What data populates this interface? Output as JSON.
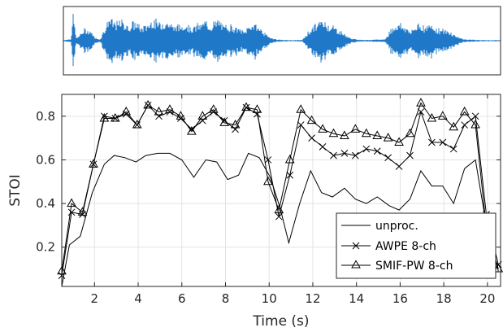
{
  "chart_data": [
    {
      "type": "line",
      "title": "",
      "xlabel": "",
      "ylabel": "",
      "grid": false,
      "xlim": [
        0.5,
        20.6
      ],
      "ylim": [
        -1,
        1
      ],
      "series": [
        {
          "envelope": [
            [
              0.5,
              0.02
            ],
            [
              0.85,
              0.06
            ],
            [
              0.95,
              0.9
            ],
            [
              1.1,
              0.08
            ],
            [
              1.3,
              0.25
            ],
            [
              1.5,
              0.4
            ],
            [
              1.75,
              0.35
            ],
            [
              1.95,
              0.1
            ],
            [
              2.2,
              0.05
            ],
            [
              2.4,
              0.45
            ],
            [
              2.6,
              0.75
            ],
            [
              2.9,
              0.6
            ],
            [
              3.2,
              0.7
            ],
            [
              3.5,
              0.5
            ],
            [
              3.8,
              0.65
            ],
            [
              4.1,
              0.45
            ],
            [
              4.35,
              0.55
            ],
            [
              4.6,
              0.75
            ],
            [
              4.9,
              0.6
            ],
            [
              5.2,
              0.7
            ],
            [
              5.5,
              0.55
            ],
            [
              5.8,
              0.5
            ],
            [
              6.1,
              0.6
            ],
            [
              6.4,
              0.45
            ],
            [
              6.7,
              0.55
            ],
            [
              7.0,
              0.65
            ],
            [
              7.3,
              0.55
            ],
            [
              7.6,
              0.7
            ],
            [
              7.9,
              0.5
            ],
            [
              8.2,
              0.55
            ],
            [
              8.5,
              0.45
            ],
            [
              8.8,
              0.3
            ],
            [
              9.0,
              0.5
            ],
            [
              9.3,
              0.6
            ],
            [
              9.6,
              0.4
            ],
            [
              9.9,
              0.15
            ],
            [
              10.3,
              0.04
            ],
            [
              10.8,
              0.02
            ],
            [
              11.2,
              0.02
            ],
            [
              11.5,
              0.03
            ],
            [
              11.8,
              0.35
            ],
            [
              12.1,
              0.55
            ],
            [
              12.4,
              0.7
            ],
            [
              12.7,
              0.55
            ],
            [
              13.0,
              0.45
            ],
            [
              13.3,
              0.3
            ],
            [
              13.6,
              0.12
            ],
            [
              13.9,
              0.05
            ],
            [
              14.2,
              0.03
            ],
            [
              14.6,
              0.03
            ],
            [
              15.0,
              0.04
            ],
            [
              15.3,
              0.05
            ],
            [
              15.6,
              0.45
            ],
            [
              15.9,
              0.6
            ],
            [
              16.2,
              0.5
            ],
            [
              16.5,
              0.3
            ],
            [
              16.8,
              0.62
            ],
            [
              17.1,
              0.5
            ],
            [
              17.4,
              0.55
            ],
            [
              17.7,
              0.42
            ],
            [
              18.0,
              0.35
            ],
            [
              18.3,
              0.3
            ],
            [
              18.6,
              0.15
            ],
            [
              18.9,
              0.05
            ],
            [
              19.4,
              0.03
            ],
            [
              19.9,
              0.02
            ],
            [
              20.6,
              0.02
            ]
          ]
        }
      ]
    },
    {
      "type": "line",
      "title": "",
      "xlabel": "Time (s)",
      "ylabel": "STOI",
      "grid": true,
      "xlim": [
        0.5,
        20.6
      ],
      "ylim": [
        0.02,
        0.9
      ],
      "xticks": [
        2,
        4,
        6,
        8,
        10,
        12,
        14,
        16,
        18,
        20
      ],
      "yticks": [
        0.2,
        0.4,
        0.6,
        0.8
      ],
      "legend_position": "lower-right",
      "series": [
        {
          "name": "unproc.",
          "marker": "none",
          "x": [
            0.5,
            0.85,
            1.35,
            1.9,
            2.45,
            2.9,
            3.4,
            3.9,
            4.35,
            4.9,
            5.45,
            6.0,
            6.55,
            7.1,
            7.6,
            8.1,
            8.6,
            9.05,
            9.55,
            10.05,
            10.5,
            10.9,
            11.4,
            11.9,
            12.4,
            12.9,
            13.45,
            13.95,
            14.45,
            14.95,
            15.5,
            15.95,
            16.45,
            16.95,
            17.45,
            17.95,
            18.45,
            18.95,
            19.45,
            19.95,
            20.5
          ],
          "y": [
            0.02,
            0.21,
            0.25,
            0.45,
            0.58,
            0.62,
            0.61,
            0.59,
            0.62,
            0.63,
            0.63,
            0.6,
            0.52,
            0.6,
            0.59,
            0.51,
            0.53,
            0.63,
            0.61,
            0.52,
            0.38,
            0.22,
            0.4,
            0.55,
            0.45,
            0.43,
            0.47,
            0.42,
            0.4,
            0.43,
            0.39,
            0.37,
            0.42,
            0.55,
            0.48,
            0.48,
            0.4,
            0.56,
            0.6,
            0.3,
            0.09
          ]
        },
        {
          "name": "AWPE 8-ch",
          "marker": "x",
          "x": [
            0.5,
            0.95,
            1.45,
            1.95,
            2.45,
            2.95,
            3.45,
            3.95,
            4.45,
            4.95,
            5.45,
            5.95,
            6.45,
            6.95,
            7.45,
            7.95,
            8.45,
            8.95,
            9.45,
            9.95,
            10.45,
            10.95,
            11.45,
            11.95,
            12.45,
            12.95,
            13.45,
            13.95,
            14.45,
            14.95,
            15.45,
            15.95,
            16.45,
            16.95,
            17.45,
            17.95,
            18.45,
            18.95,
            19.45,
            19.95,
            20.5
          ],
          "y": [
            0.07,
            0.36,
            0.35,
            0.58,
            0.8,
            0.79,
            0.81,
            0.76,
            0.85,
            0.8,
            0.82,
            0.79,
            0.74,
            0.78,
            0.82,
            0.78,
            0.74,
            0.84,
            0.81,
            0.6,
            0.34,
            0.53,
            0.76,
            0.7,
            0.66,
            0.62,
            0.63,
            0.62,
            0.65,
            0.64,
            0.61,
            0.57,
            0.62,
            0.82,
            0.68,
            0.68,
            0.65,
            0.76,
            0.8,
            0.35,
            0.12
          ]
        },
        {
          "name": "SMIF-PW 8-ch",
          "marker": "triangle",
          "x": [
            0.5,
            0.95,
            1.45,
            1.95,
            2.45,
            2.95,
            3.45,
            3.95,
            4.45,
            4.95,
            5.45,
            5.95,
            6.45,
            6.95,
            7.45,
            7.95,
            8.45,
            8.95,
            9.45,
            9.95,
            10.45,
            10.95,
            11.45,
            11.95,
            12.45,
            12.95,
            13.45,
            13.95,
            14.45,
            14.95,
            15.45,
            15.95,
            16.45,
            16.95,
            17.45,
            17.95,
            18.45,
            18.95,
            19.45,
            19.95,
            20.5
          ],
          "y": [
            0.09,
            0.4,
            0.36,
            0.58,
            0.79,
            0.79,
            0.82,
            0.76,
            0.85,
            0.82,
            0.83,
            0.8,
            0.73,
            0.8,
            0.83,
            0.77,
            0.76,
            0.84,
            0.83,
            0.5,
            0.37,
            0.6,
            0.83,
            0.78,
            0.74,
            0.72,
            0.71,
            0.74,
            0.72,
            0.71,
            0.7,
            0.68,
            0.72,
            0.86,
            0.79,
            0.8,
            0.75,
            0.82,
            0.76,
            0.29,
            0.1
          ]
        }
      ]
    }
  ],
  "colors": {
    "waveform": "#1f78c8",
    "line": "#000000",
    "grid": "#e3e3e3",
    "axis": "#262626"
  }
}
